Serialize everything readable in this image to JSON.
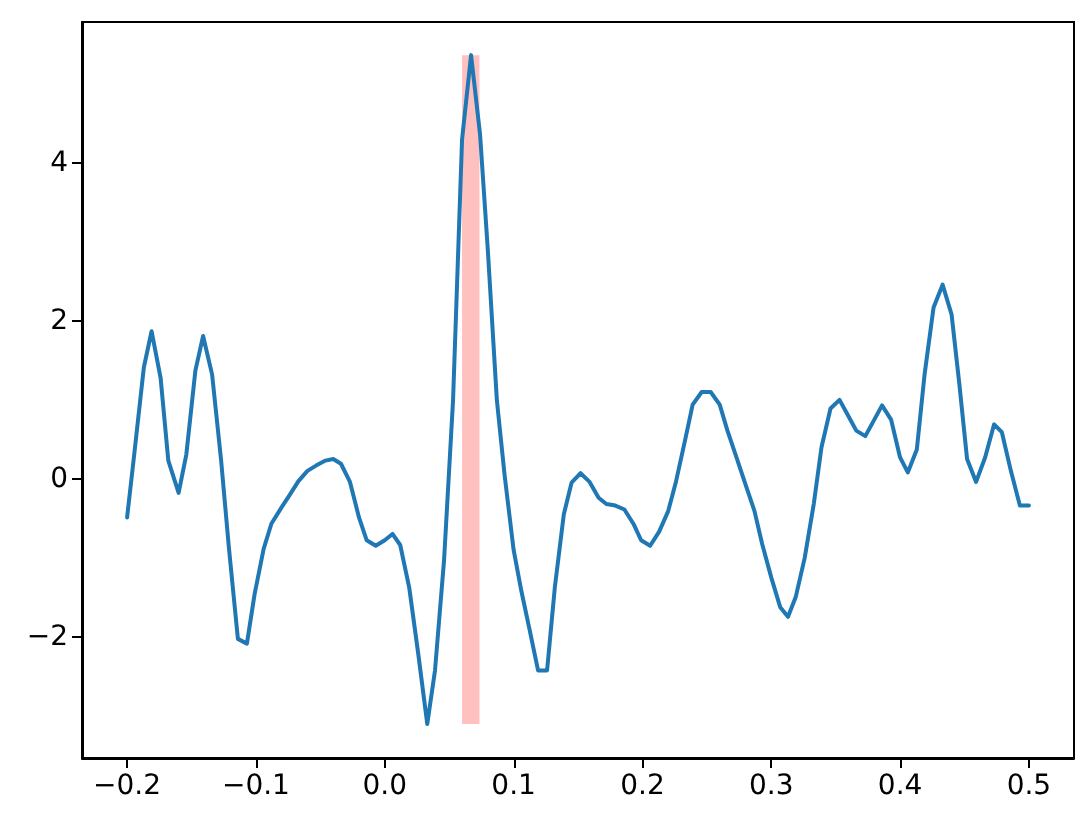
{
  "chart_data": {
    "type": "line",
    "color": "#1f77b4",
    "x": [
      -0.2,
      -0.195,
      -0.187,
      -0.181,
      -0.174,
      -0.168,
      -0.16,
      -0.154,
      -0.147,
      -0.141,
      -0.134,
      -0.127,
      -0.121,
      -0.114,
      -0.107,
      -0.101,
      -0.094,
      -0.088,
      -0.08,
      -0.074,
      -0.067,
      -0.06,
      -0.053,
      -0.046,
      -0.04,
      -0.034,
      -0.027,
      -0.02,
      -0.014,
      -0.007,
      0.0,
      0.006,
      0.012,
      0.019,
      0.026,
      0.033,
      0.039,
      0.046,
      0.053,
      0.06,
      0.067,
      0.074,
      0.08,
      0.087,
      0.093,
      0.1,
      0.106,
      0.112,
      0.119,
      0.126,
      0.132,
      0.139,
      0.145,
      0.152,
      0.159,
      0.166,
      0.172,
      0.179,
      0.186,
      0.193,
      0.199,
      0.206,
      0.213,
      0.22,
      0.226,
      0.233,
      0.239,
      0.246,
      0.253,
      0.26,
      0.266,
      0.273,
      0.28,
      0.287,
      0.293,
      0.3,
      0.307,
      0.313,
      0.319,
      0.326,
      0.333,
      0.339,
      0.346,
      0.353,
      0.359,
      0.366,
      0.373,
      0.38,
      0.386,
      0.393,
      0.4,
      0.406,
      0.413,
      0.419,
      0.426,
      0.433,
      0.44,
      0.446,
      0.452,
      0.459,
      0.466,
      0.473,
      0.479,
      0.486,
      0.493,
      0.5
    ],
    "values": [
      -0.49,
      0.23,
      1.41,
      1.87,
      1.28,
      0.23,
      -0.18,
      0.31,
      1.37,
      1.81,
      1.32,
      0.23,
      -0.87,
      -2.03,
      -2.09,
      -1.46,
      -0.89,
      -0.57,
      -0.36,
      -0.21,
      -0.03,
      0.1,
      0.17,
      0.23,
      0.25,
      0.19,
      -0.04,
      -0.49,
      -0.78,
      -0.85,
      -0.78,
      -0.7,
      -0.84,
      -1.38,
      -2.22,
      -3.11,
      -2.43,
      -1.04,
      0.99,
      4.3,
      5.37,
      4.36,
      2.9,
      1.0,
      0.05,
      -0.9,
      -1.42,
      -1.88,
      -2.43,
      -2.43,
      -1.38,
      -0.45,
      -0.05,
      0.07,
      -0.04,
      -0.24,
      -0.32,
      -0.34,
      -0.39,
      -0.57,
      -0.78,
      -0.85,
      -0.67,
      -0.41,
      -0.04,
      0.48,
      0.94,
      1.1,
      1.1,
      0.94,
      0.61,
      0.27,
      -0.07,
      -0.41,
      -0.83,
      -1.25,
      -1.63,
      -1.75,
      -1.5,
      -1.0,
      -0.32,
      0.4,
      0.89,
      1.0,
      0.82,
      0.61,
      0.54,
      0.75,
      0.93,
      0.75,
      0.27,
      0.08,
      0.37,
      1.32,
      2.17,
      2.46,
      2.08,
      1.2,
      0.25,
      -0.04,
      0.27,
      0.69,
      0.59,
      0.1,
      -0.34,
      -0.34
    ],
    "xlim": [
      -0.235,
      0.535
    ],
    "ylim": [
      -3.54,
      5.79
    ],
    "xticks": [
      {
        "value": -0.2,
        "label": "−0.2"
      },
      {
        "value": -0.1,
        "label": "−0.1"
      },
      {
        "value": 0,
        "label": "0.0"
      },
      0.1,
      0.2,
      0.3,
      0.4,
      0.5
    ],
    "yticks": [
      {
        "value": -2,
        "label": "−2"
      },
      0,
      2,
      4
    ],
    "bands": [
      {
        "axis": "x",
        "from": 0.06,
        "to": 0.0735,
        "color": "#ffc0c0"
      }
    ],
    "grid": false,
    "marker": "none",
    "line_style": "solid"
  }
}
